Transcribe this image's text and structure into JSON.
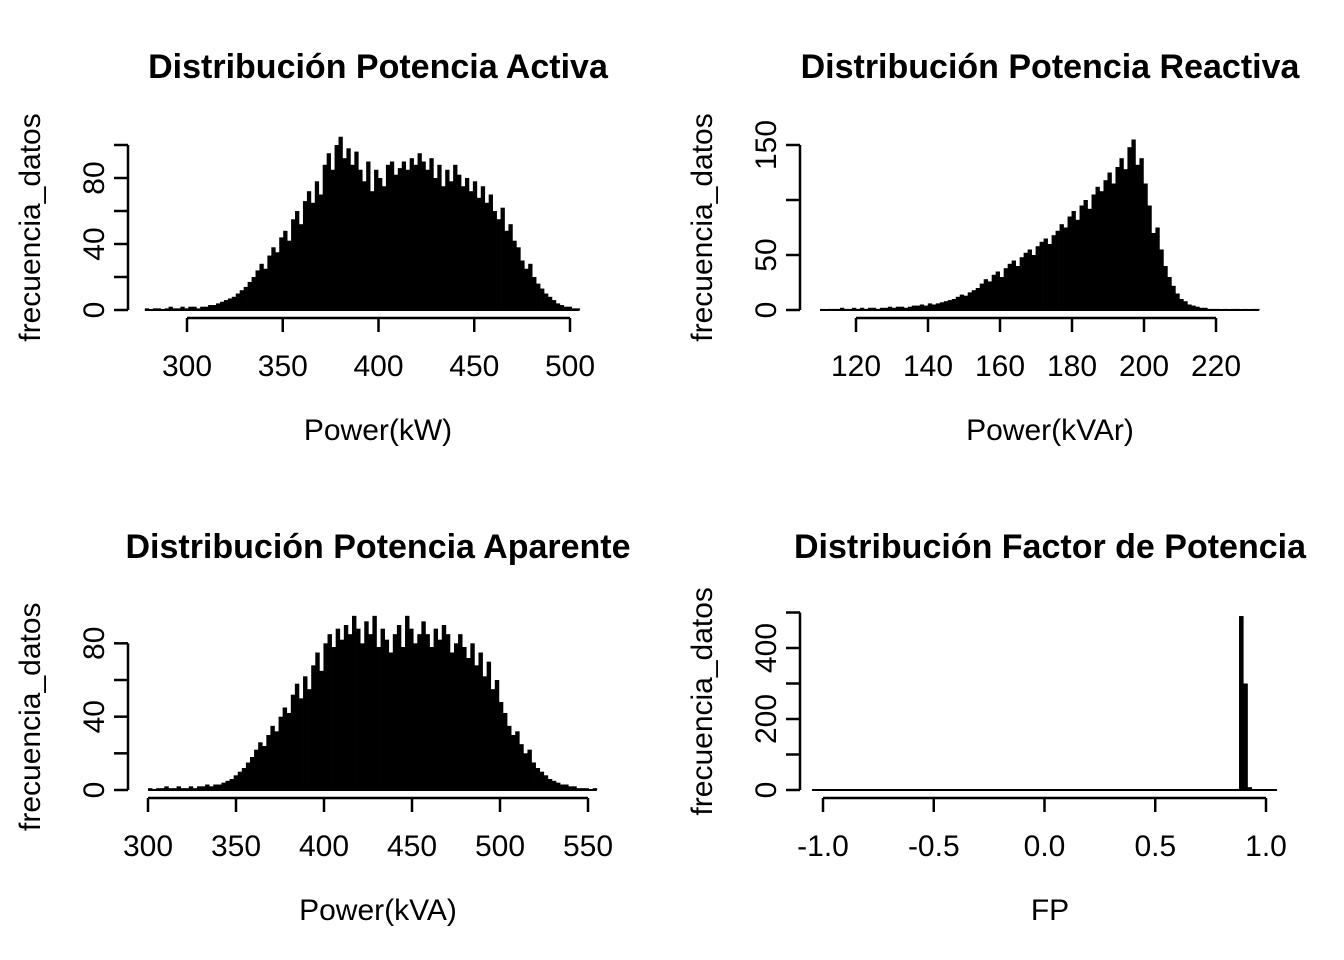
{
  "page": {
    "background": "#ffffff",
    "foreground": "#000000",
    "bar_fill": "#000000"
  },
  "chart_data": [
    {
      "id": "activa",
      "type": "bar",
      "subtype": "histogram",
      "title": "Distribución Potencia Activa",
      "xlabel": "Power(kW)",
      "ylabel": "frecuencia_datos",
      "xlim": [
        278,
        505
      ],
      "ylim": [
        0,
        100
      ],
      "x_tick_values": [
        300,
        350,
        400,
        450,
        500
      ],
      "x_tick_labels": [
        "300",
        "350",
        "400",
        "450",
        "500"
      ],
      "y_tick_values": [
        0,
        20,
        40,
        60,
        80,
        100
      ],
      "y_tick_labels": [
        "0",
        "",
        "40",
        "",
        "80",
        ""
      ],
      "grid": false,
      "legend": null,
      "bars": [
        1,
        0,
        1,
        1,
        0,
        1,
        2,
        1,
        1,
        2,
        1,
        2,
        2,
        1,
        2,
        2,
        3,
        3,
        4,
        5,
        6,
        7,
        8,
        10,
        12,
        14,
        17,
        20,
        24,
        28,
        25,
        33,
        38,
        35,
        44,
        48,
        42,
        55,
        60,
        52,
        66,
        72,
        65,
        78,
        70,
        88,
        95,
        85,
        100,
        105,
        92,
        98,
        88,
        96,
        85,
        78,
        90,
        72,
        85,
        80,
        75,
        88,
        90,
        82,
        86,
        90,
        85,
        92,
        88,
        95,
        90,
        85,
        92,
        80,
        88,
        75,
        85,
        78,
        88,
        82,
        75,
        80,
        72,
        78,
        68,
        75,
        65,
        70,
        60,
        55,
        62,
        48,
        52,
        42,
        38,
        30,
        25,
        28,
        20,
        16,
        13,
        10,
        8,
        6,
        4,
        3,
        2,
        2,
        1,
        1
      ]
    },
    {
      "id": "reactiva",
      "type": "bar",
      "subtype": "histogram",
      "title": "Distribución Potencia Reactiva",
      "xlabel": "Power(kVAr)",
      "ylabel": "frecuencia_datos",
      "xlim": [
        110,
        232
      ],
      "ylim": [
        0,
        150
      ],
      "x_tick_values": [
        120,
        140,
        160,
        180,
        200,
        220
      ],
      "x_tick_labels": [
        "120",
        "140",
        "160",
        "180",
        "200",
        "220"
      ],
      "y_tick_values": [
        0,
        50,
        100,
        150
      ],
      "y_tick_labels": [
        "0",
        "50",
        "",
        "150"
      ],
      "grid": false,
      "legend": null,
      "bars": [
        1,
        0,
        1,
        1,
        1,
        2,
        1,
        1,
        2,
        1,
        2,
        1,
        2,
        2,
        1,
        2,
        2,
        3,
        2,
        3,
        3,
        2,
        3,
        4,
        4,
        5,
        4,
        6,
        5,
        6,
        7,
        8,
        9,
        10,
        12,
        14,
        13,
        16,
        18,
        20,
        24,
        28,
        26,
        32,
        35,
        30,
        38,
        42,
        45,
        40,
        48,
        52,
        55,
        50,
        58,
        62,
        65,
        60,
        68,
        72,
        78,
        75,
        85,
        90,
        82,
        95,
        100,
        92,
        105,
        112,
        108,
        118,
        125,
        115,
        130,
        138,
        128,
        148,
        155,
        132,
        138,
        115,
        95,
        70,
        75,
        55,
        40,
        30,
        22,
        15,
        10,
        8,
        5,
        4,
        3,
        2,
        2,
        1,
        1,
        1,
        0,
        1,
        0,
        1,
        1,
        0,
        1,
        0,
        1,
        1
      ]
    },
    {
      "id": "aparente",
      "type": "bar",
      "subtype": "histogram",
      "title": "Distribución Potencia Aparente",
      "xlabel": "Power(kVA)",
      "ylabel": "frecuencia_datos",
      "xlim": [
        300,
        555
      ],
      "ylim": [
        0,
        80
      ],
      "x_tick_values": [
        300,
        350,
        400,
        450,
        500,
        550
      ],
      "x_tick_labels": [
        "300",
        "350",
        "400",
        "450",
        "500",
        "550"
      ],
      "y_tick_values": [
        0,
        20,
        40,
        60,
        80
      ],
      "y_tick_labels": [
        "0",
        "",
        "40",
        "",
        "80"
      ],
      "grid": false,
      "legend": null,
      "bars": [
        1,
        0,
        1,
        1,
        2,
        1,
        1,
        2,
        1,
        1,
        2,
        1,
        2,
        2,
        3,
        2,
        3,
        3,
        4,
        5,
        6,
        8,
        10,
        12,
        15,
        18,
        22,
        26,
        24,
        30,
        35,
        32,
        40,
        45,
        42,
        52,
        58,
        50,
        62,
        55,
        68,
        75,
        65,
        80,
        85,
        78,
        88,
        82,
        90,
        85,
        95,
        88,
        80,
        92,
        85,
        95,
        78,
        88,
        82,
        75,
        85,
        90,
        78,
        95,
        88,
        80,
        85,
        92,
        85,
        78,
        88,
        82,
        90,
        85,
        75,
        80,
        85,
        78,
        72,
        80,
        68,
        75,
        62,
        70,
        55,
        60,
        48,
        42,
        35,
        30,
        32,
        25,
        20,
        22,
        15,
        12,
        10,
        8,
        6,
        5,
        4,
        3,
        3,
        2,
        2,
        1,
        1,
        1,
        0,
        1
      ]
    },
    {
      "id": "fp",
      "type": "bar",
      "subtype": "histogram",
      "title": "Distribución Factor de Potencia",
      "xlabel": "FP",
      "ylabel": "frecuencia_datos",
      "xlim": [
        -1.05,
        1.05
      ],
      "ylim": [
        0,
        500
      ],
      "x_tick_values": [
        -1.0,
        -0.5,
        0.0,
        0.5,
        1.0
      ],
      "x_tick_labels": [
        "-1.0",
        "-0.5",
        "0.0",
        "0.5",
        "1.0"
      ],
      "y_tick_values": [
        0,
        100,
        200,
        300,
        400,
        500
      ],
      "y_tick_labels": [
        "0",
        "",
        "200",
        "",
        "400",
        ""
      ],
      "grid": false,
      "legend": null,
      "bars": [
        0,
        0,
        0,
        0,
        0,
        0,
        0,
        0,
        0,
        0,
        0,
        0,
        0,
        0,
        0,
        0,
        0,
        0,
        0,
        0,
        0,
        0,
        0,
        0,
        0,
        0,
        0,
        0,
        0,
        0,
        0,
        0,
        0,
        0,
        0,
        0,
        0,
        0,
        0,
        0,
        0,
        0,
        0,
        0,
        0,
        0,
        0,
        0,
        0,
        0,
        0,
        0,
        0,
        0,
        0,
        0,
        0,
        0,
        0,
        0,
        0,
        0,
        0,
        0,
        0,
        0,
        0,
        0,
        0,
        0,
        0,
        0,
        0,
        0,
        0,
        0,
        0,
        0,
        0,
        0,
        0,
        0,
        0,
        0,
        0,
        0,
        0,
        0,
        0,
        0,
        0,
        0,
        0,
        0,
        0,
        0,
        0,
        0,
        0,
        0,
        3,
        490,
        300,
        8,
        0,
        0,
        0,
        0,
        0,
        0
      ]
    }
  ]
}
